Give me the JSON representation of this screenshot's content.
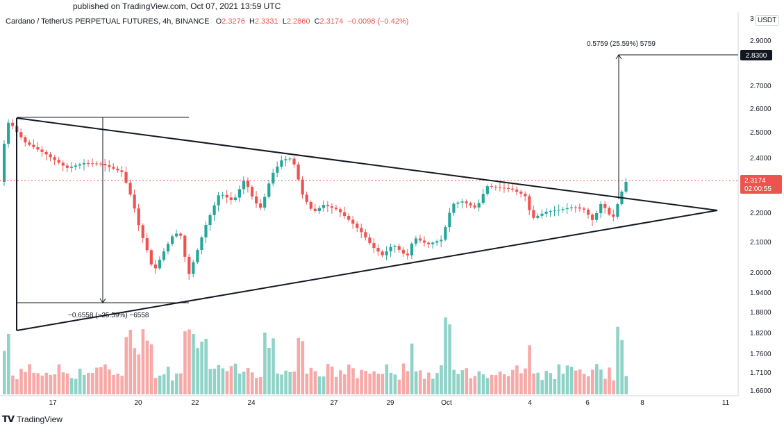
{
  "header": {
    "published": "published on TradingView.com, Oct 07, 2021 13:59 UTC",
    "symbol": "Cardano / TetherUS PERPETUAL FUTURES, 4h, BINANCE",
    "o_label": "O",
    "o": "2.3276",
    "h_label": "H",
    "h": "2.3331",
    "l_label": "L",
    "l": "2.2860",
    "c_label": "C",
    "c": "2.3174",
    "change": "−0.0098 (−0.42%)"
  },
  "price_axis": {
    "unit": "USDT",
    "top_label": "3",
    "current_price": "2.3174",
    "countdown": "02:00:55",
    "target_price": "2.8300"
  },
  "footer": {
    "logo_text": "TradingView"
  },
  "colors": {
    "up": "#26a69a",
    "down": "#ef5350",
    "vol_up": "#8fd3c8",
    "vol_down": "#f7a9a7",
    "badge": "#131722"
  },
  "chart_data": {
    "type": "candlestick",
    "x_ticks": [
      "17",
      "20",
      "22",
      "24",
      "27",
      "29",
      "Oct",
      "4",
      "6",
      "8",
      "11"
    ],
    "y_ticks": [
      "2.9000",
      "2.8300",
      "2.7000",
      "2.6000",
      "2.5000",
      "2.4000",
      "2.3000",
      "2.2000",
      "2.1000",
      "2.0000",
      "1.9400",
      "1.8800",
      "1.8200",
      "1.7600",
      "1.7100",
      "1.6600"
    ],
    "ylim": [
      1.64,
      3.0
    ],
    "annotations": {
      "measure_up": "0.5759 (25.59%) 5759",
      "measure_down": "−0.6558 (−25.59%) −6558"
    }
  }
}
